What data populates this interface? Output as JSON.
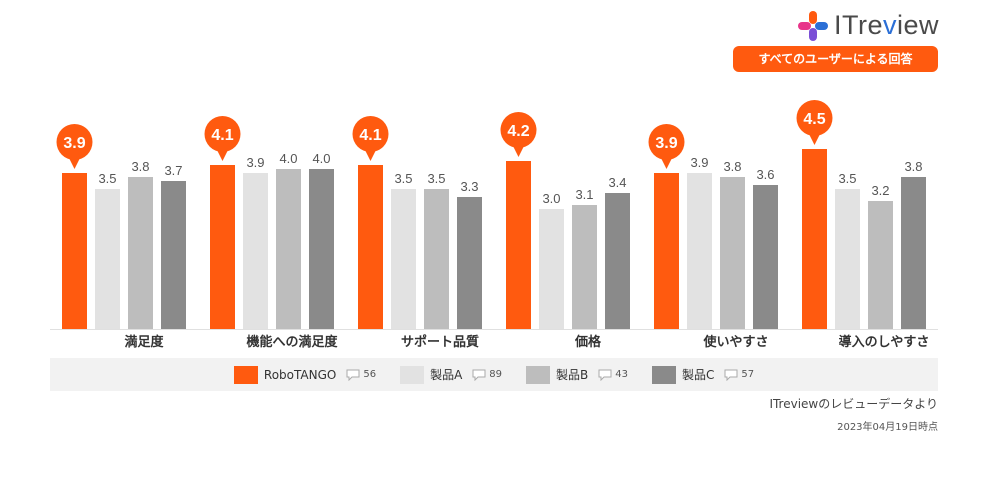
{
  "header": {
    "logo_text_it": "IT",
    "logo_text_re": "re",
    "logo_text_v": "v",
    "logo_text_iew": "iew",
    "filter_label": "すべてのユーザーによる回答"
  },
  "colors": {
    "highlight": "#ff5a0f",
    "series_a": "#e2e2e2",
    "series_b": "#bdbdbd",
    "series_c": "#8a8a8a"
  },
  "chart_data": {
    "type": "bar",
    "categories": [
      "満足度",
      "機能への満足度",
      "サポート品質",
      "価格",
      "使いやすさ",
      "導入のしやすさ"
    ],
    "series": [
      {
        "name": "RoboTANGO",
        "values": [
          3.9,
          4.1,
          4.1,
          4.2,
          3.9,
          4.5
        ]
      },
      {
        "name": "製品A",
        "values": [
          3.5,
          3.9,
          3.5,
          3.0,
          3.9,
          3.5
        ]
      },
      {
        "name": "製品B",
        "values": [
          3.8,
          4.0,
          3.5,
          3.1,
          3.8,
          3.2
        ]
      },
      {
        "name": "製品C",
        "values": [
          3.7,
          4.0,
          3.3,
          3.4,
          3.6,
          3.8
        ]
      }
    ],
    "ylim": [
      0,
      5
    ],
    "grid": false,
    "legend_position": "bottom",
    "highlight_series": "RoboTANGO"
  },
  "legend": [
    {
      "name": "RoboTANGO",
      "count": "56",
      "color": "#ff5a0f"
    },
    {
      "name": "製品A",
      "count": "89",
      "color": "#e2e2e2"
    },
    {
      "name": "製品B",
      "count": "43",
      "color": "#bdbdbd"
    },
    {
      "name": "製品C",
      "count": "57",
      "color": "#8a8a8a"
    }
  ],
  "footer": {
    "source": "ITreviewのレビューデータより",
    "date": "2023年04月19日時点"
  }
}
